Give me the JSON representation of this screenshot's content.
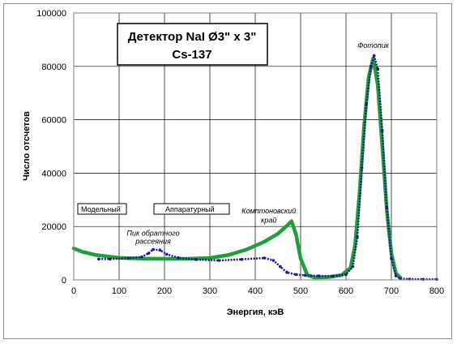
{
  "chart_data": {
    "type": "line",
    "title_lines": [
      "Детектор NaI Ø3\" x 3\"",
      "Cs-137"
    ],
    "xlabel": "Энергия, кэВ",
    "ylabel": "Число отсчетов",
    "xlim": [
      0,
      800
    ],
    "ylim": [
      0,
      100000
    ],
    "x_ticks": [
      "0",
      "100",
      "200",
      "300",
      "400",
      "500",
      "600",
      "700",
      "800"
    ],
    "y_ticks": [
      "0",
      "20000",
      "40000",
      "60000",
      "80000",
      "100000"
    ],
    "grid": true,
    "legend": [
      {
        "label": "Модельный",
        "color": "#1f9e3a"
      },
      {
        "label": "Аппаратурный",
        "color": "#1a1a8c"
      }
    ],
    "annotations": [
      {
        "text": "Фотопик",
        "x": 660,
        "y": 87000
      },
      {
        "text": "Комптоновский",
        "x": 430,
        "y": 25000
      },
      {
        "text": "край",
        "x": 430,
        "y": 21500
      },
      {
        "text": "Пик обратного",
        "x": 175,
        "y": 16500
      },
      {
        "text": "рассеяния",
        "x": 175,
        "y": 13500
      }
    ],
    "series": [
      {
        "name": "Модельный",
        "color": "#1f9e3a",
        "x": [
          0,
          20,
          50,
          100,
          150,
          200,
          250,
          300,
          340,
          380,
          420,
          450,
          470,
          480,
          490,
          500,
          515,
          530,
          560,
          590,
          610,
          620,
          630,
          640,
          650,
          660,
          670,
          680,
          690,
          700,
          710,
          720
        ],
        "y": [
          11800,
          10500,
          9300,
          8300,
          8000,
          7900,
          7900,
          8200,
          9300,
          11300,
          14300,
          17300,
          20300,
          22000,
          17000,
          8000,
          1800,
          900,
          1000,
          1800,
          4500,
          13000,
          33000,
          58000,
          76000,
          83000,
          73000,
          50000,
          26000,
          10000,
          2500,
          800
        ]
      },
      {
        "name": "Аппаратурный",
        "color": "#1a1a8c",
        "x": [
          55,
          80,
          120,
          150,
          165,
          175,
          190,
          205,
          230,
          270,
          320,
          370,
          420,
          440,
          455,
          470,
          490,
          510,
          540,
          570,
          600,
          615,
          625,
          635,
          645,
          655,
          662,
          670,
          680,
          690,
          700,
          710,
          720,
          740,
          770,
          800
        ],
        "y": [
          7800,
          7800,
          8100,
          8600,
          10000,
          11400,
          11200,
          9600,
          8300,
          7600,
          7300,
          7700,
          8200,
          7300,
          5000,
          2800,
          2000,
          1700,
          1500,
          1400,
          2000,
          5000,
          16000,
          42000,
          66000,
          80000,
          84000,
          79000,
          56000,
          27000,
          8000,
          1500,
          500,
          300,
          200,
          200
        ]
      }
    ]
  }
}
